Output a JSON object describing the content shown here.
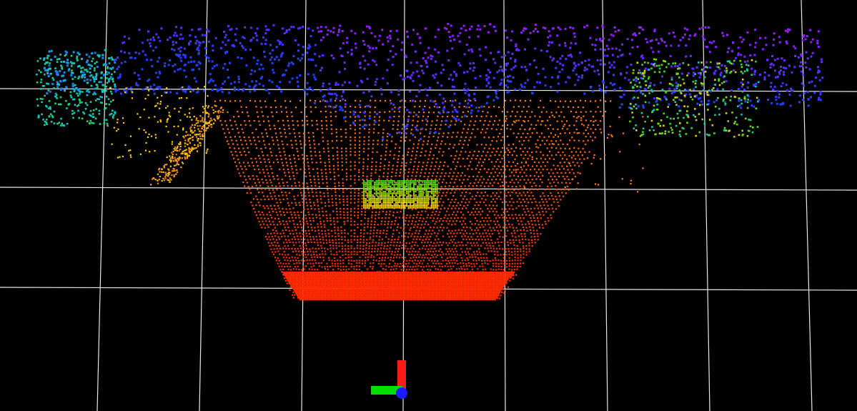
{
  "viewport": {
    "background": "#000000",
    "grid_color": "#e8e8e8"
  },
  "point_cloud": {
    "color_scheme": "rainbow-by-height",
    "colors": {
      "near_ground": "#ff2a00",
      "ground_far": "#ff7a10",
      "mid": "#ffd000",
      "object": "#40e000",
      "wall": "#00c8e0",
      "ceiling": "#2040ff",
      "top": "#9a1cff"
    }
  },
  "axes_marker": {
    "x_axis_color": "#00dd00",
    "y_axis_color": "#ff1a1a",
    "z_axis_color": "#1a1aff",
    "icon": "xyz-axes-icon"
  }
}
